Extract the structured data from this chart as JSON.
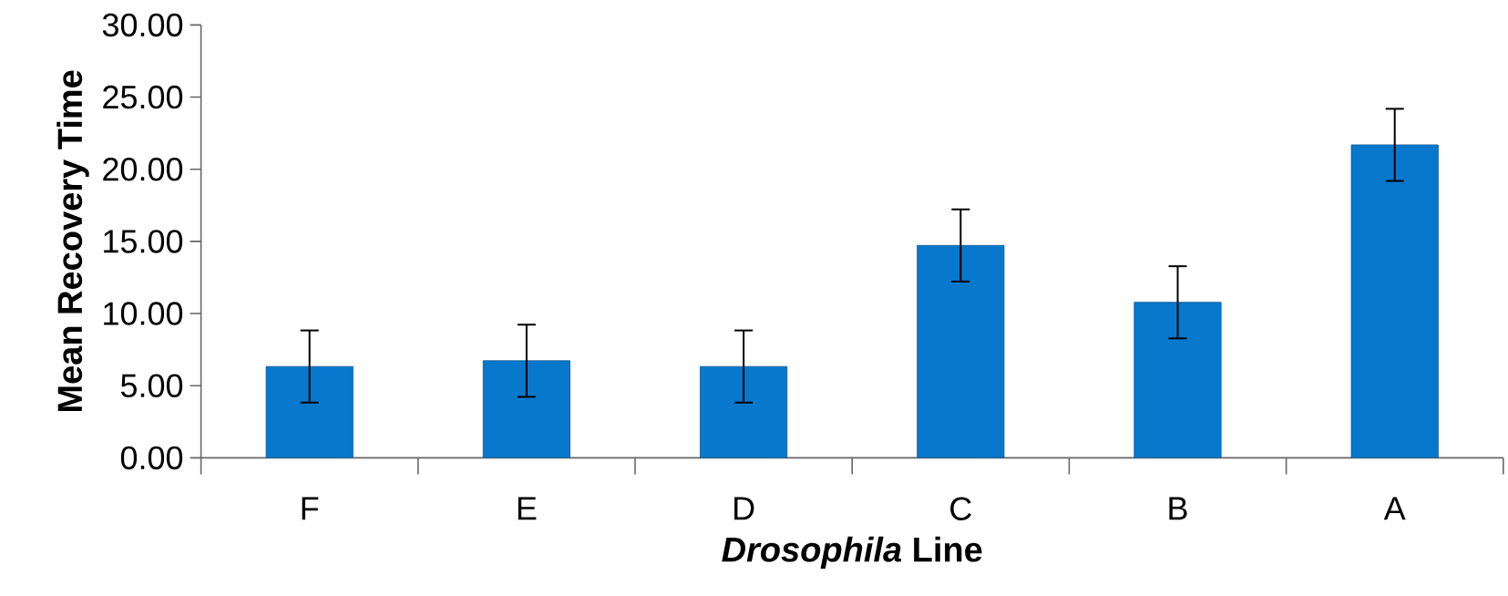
{
  "chart_data": {
    "type": "bar",
    "xlabel": "*Drosophila* Line",
    "ylabel": "Mean Recovery Time",
    "categories": [
      "F",
      "E",
      "D",
      "C",
      "B",
      "A"
    ],
    "values": [
      6.33,
      6.73,
      6.33,
      14.72,
      10.78,
      21.69
    ],
    "errors": [
      2.5,
      2.5,
      2.5,
      2.5,
      2.5,
      2.5
    ],
    "color": "#0878cc",
    "ylim": [
      0,
      30
    ],
    "yticks": [
      {
        "value": 0,
        "label": "0.00"
      },
      {
        "value": 5,
        "label": "5.00"
      },
      {
        "value": 10,
        "label": "10.00"
      },
      {
        "value": 15,
        "label": "15.00"
      },
      {
        "value": 20,
        "label": "20.00"
      },
      {
        "value": 25,
        "label": "25.00"
      },
      {
        "value": 30,
        "label": "30.00"
      }
    ],
    "grid": false
  }
}
